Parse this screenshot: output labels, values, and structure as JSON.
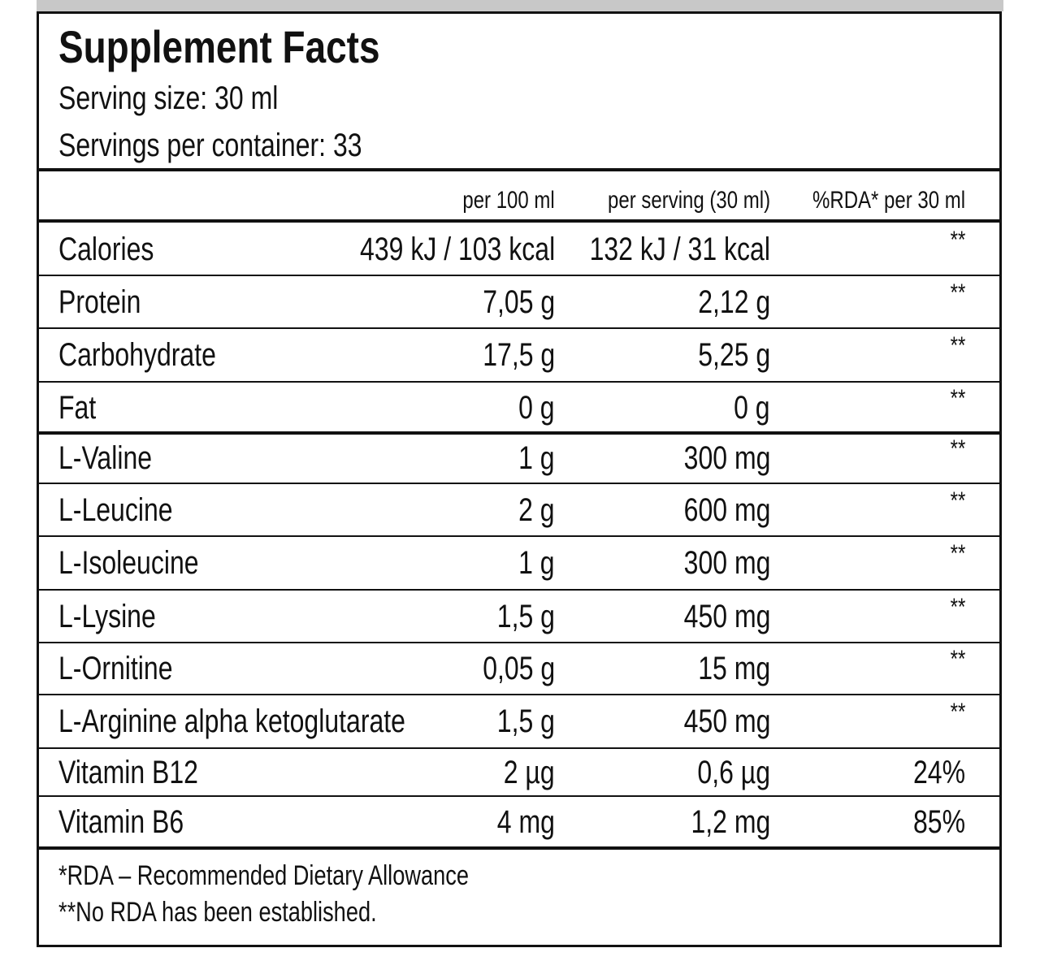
{
  "header": {
    "title": "Supplement Facts",
    "serving_size": "Serving size: 30 ml",
    "servings_per_container": "Servings per container: 33"
  },
  "table": {
    "columns": [
      "per 100 ml",
      "per serving (30 ml)",
      "%RDA* per 30 ml"
    ],
    "rows": [
      [
        "Calories",
        "439 kJ / 103 kcal",
        "132 kJ / 31 kcal",
        "**"
      ],
      [
        "Protein",
        "7,05 g",
        "2,12 g",
        "**"
      ],
      [
        "Carbohydrate",
        "17,5 g",
        "5,25 g",
        "**"
      ],
      [
        "Fat",
        "0 g",
        "0 g",
        "**"
      ],
      [
        "L-Valine",
        "1 g",
        "300 mg",
        "**"
      ],
      [
        "L-Leucine",
        "2 g",
        "600 mg",
        "**"
      ],
      [
        "L-Isoleucine",
        "1 g",
        "300 mg",
        "**"
      ],
      [
        "L-Lysine",
        "1,5 g",
        "450 mg",
        "**"
      ],
      [
        "L-Ornitine",
        "0,05 g",
        "15 mg",
        "**"
      ],
      [
        "L-Arginine alpha ketoglutarate",
        "1,5 g",
        "450 mg",
        "**"
      ],
      [
        "Vitamin B12",
        "2 µg",
        "0,6 µg",
        "24%"
      ],
      [
        "Vitamin B6",
        "4 mg",
        "1,2 mg",
        "85%"
      ]
    ]
  },
  "footnotes": [
    "*RDA – Recommended Dietary Allowance",
    "**No RDA has been established."
  ]
}
